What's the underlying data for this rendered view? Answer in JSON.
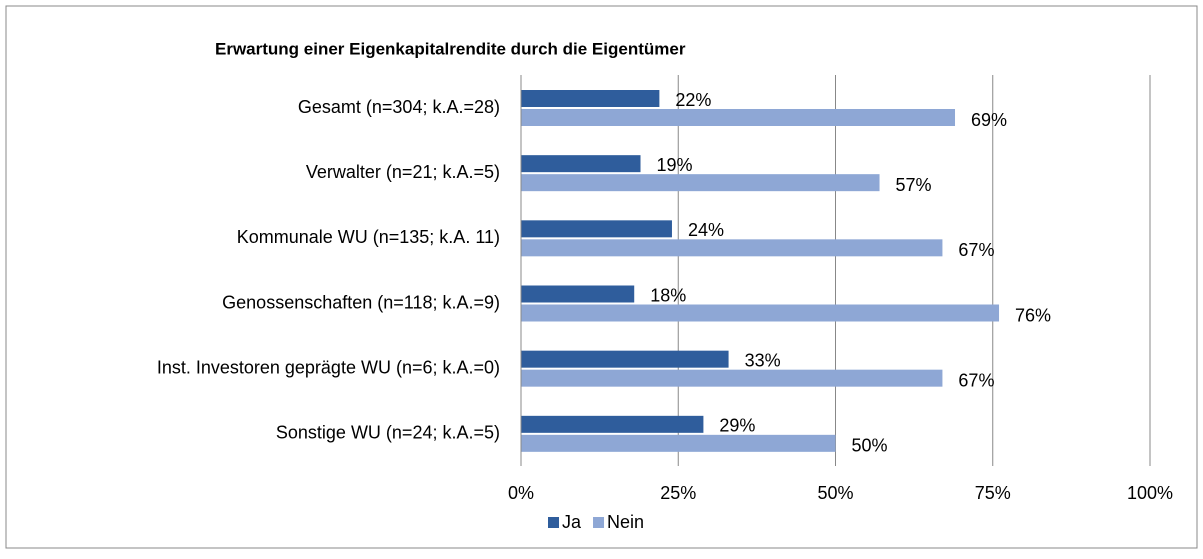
{
  "chart_data": {
    "type": "bar",
    "orientation": "horizontal",
    "title": "Erwartung einer Eigenkapitalrendite durch die Eigentümer",
    "categories": [
      "Gesamt (n=304; k.A.=28)",
      "Verwalter (n=21; k.A.=5)",
      "Kommunale WU (n=135; k.A. 11)",
      "Genossenschaften (n=118; k.A.=9)",
      "Inst. Investoren geprägte WU (n=6; k.A.=0)",
      "Sonstige WU (n=24; k.A.=5)"
    ],
    "series": [
      {
        "name": "Ja",
        "color": "#2f5d9c",
        "values": [
          22,
          19,
          24,
          18,
          33,
          29
        ],
        "value_labels": [
          "22%",
          "19%",
          "24%",
          "18%",
          "33%",
          "29%"
        ]
      },
      {
        "name": "Nein",
        "color": "#8ea7d5",
        "values": [
          69,
          57,
          67,
          76,
          67,
          50
        ],
        "value_labels": [
          "69%",
          "57%",
          "67%",
          "76%",
          "67%",
          "50%"
        ]
      }
    ],
    "xlim": [
      0,
      100
    ],
    "xticks": [
      {
        "value": 0,
        "label": "0%"
      },
      {
        "value": 25,
        "label": "25%"
      },
      {
        "value": 50,
        "label": "50%"
      },
      {
        "value": 75,
        "label": "75%"
      },
      {
        "value": 100,
        "label": "100%"
      }
    ],
    "grid": true,
    "legend": "bottom"
  }
}
